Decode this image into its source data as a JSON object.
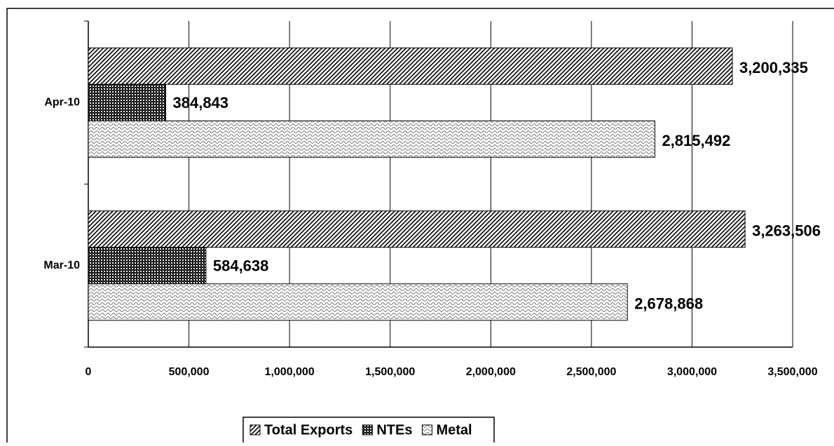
{
  "chart_data": {
    "type": "bar",
    "orientation": "horizontal",
    "categories": [
      "Apr-10",
      "Mar-10"
    ],
    "series": [
      {
        "name": "Total Exports",
        "color": "#000000",
        "pattern": "diagonal",
        "values": [
          3200335,
          3263506
        ],
        "value_labels": [
          "3,200,335",
          "3,263,506"
        ]
      },
      {
        "name": "NTEs",
        "color": "#000000",
        "pattern": "checker",
        "values": [
          384843,
          584638
        ],
        "value_labels": [
          "384,843",
          "584,638"
        ]
      },
      {
        "name": "Metal",
        "color": "#000000",
        "pattern": "wave",
        "values": [
          2815492,
          2678868
        ],
        "value_labels": [
          "2,815,492",
          "2,678,868"
        ]
      }
    ],
    "xlim": [
      0,
      3500000
    ],
    "xticks": [
      0,
      {
        "value": 500000,
        "label": "500,000"
      },
      {
        "value": 1000000,
        "label": "1,000,000"
      },
      {
        "value": 1500000,
        "label": "1,500,000"
      },
      {
        "value": 2000000,
        "label": "2,000,000"
      },
      {
        "value": 2500000,
        "label": "2,500,000"
      },
      {
        "value": 3000000,
        "label": "3,000,000"
      },
      {
        "value": 3500000,
        "label": "3,500,000"
      }
    ],
    "grid": true,
    "legend": "bottom"
  }
}
